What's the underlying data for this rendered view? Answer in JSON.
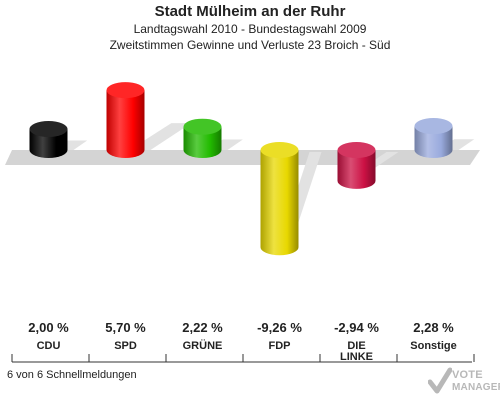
{
  "header": {
    "title": "Stadt Mülheim an der Ruhr",
    "subtitle": "Landtagswahl 2010 - Bundestagswahl 2009",
    "description": "Zweitstimmen Gewinne und Verluste 23 Broich - Süd"
  },
  "chart_data": {
    "type": "bar",
    "categories": [
      "CDU",
      "SPD",
      "GRÜNE",
      "FDP",
      "DIE LINKE",
      "Sonstige"
    ],
    "values": [
      2.0,
      5.7,
      2.22,
      -9.26,
      -2.94,
      2.28
    ],
    "value_labels": [
      "2,00 %",
      "5,70 %",
      "2,22 %",
      "-9,26 %",
      "-2,94 %",
      "2,28 %"
    ],
    "colors": [
      "#000000",
      "#ff0000",
      "#22bb00",
      "#e8d800",
      "#cc1144",
      "#99aadd"
    ],
    "title": "Stadt Mülheim an der Ruhr",
    "xlabel": "",
    "ylabel": ""
  },
  "footer": {
    "text": "6 von 6 Schnellmeldungen"
  },
  "logo": {
    "line1": "VOTE",
    "line2": "MANAGER"
  }
}
